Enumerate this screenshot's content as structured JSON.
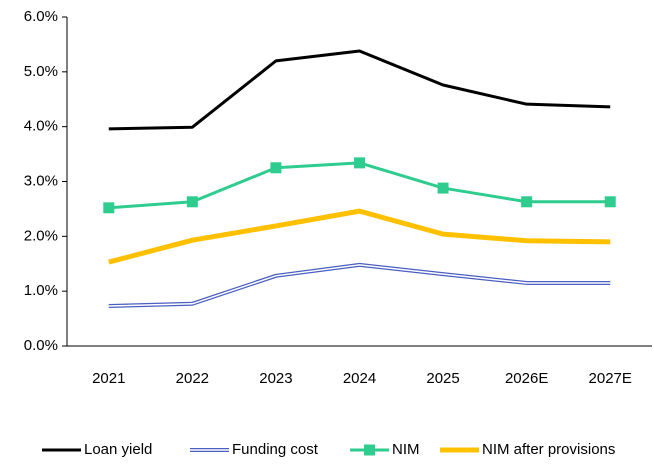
{
  "chart_data": {
    "type": "line",
    "categories": [
      "2021",
      "2022",
      "2023",
      "2024",
      "2025",
      "2026E",
      "2027E"
    ],
    "series": [
      {
        "name": "Loan yield",
        "color": "#000000",
        "values": [
          3.96,
          3.99,
          5.2,
          5.38,
          4.76,
          4.41,
          4.36
        ]
      },
      {
        "name": "Funding cost",
        "color": "#4a5fc1",
        "values": [
          0.73,
          0.77,
          1.28,
          1.48,
          1.31,
          1.15,
          1.15
        ]
      },
      {
        "name": "NIM",
        "color": "#2ecc8f",
        "values": [
          2.52,
          2.63,
          3.25,
          3.34,
          2.88,
          2.63,
          2.63
        ]
      },
      {
        "name": "NIM after provisions",
        "color": "#ffc000",
        "values": [
          1.53,
          1.93,
          2.19,
          2.46,
          2.04,
          1.92,
          1.9
        ]
      }
    ],
    "ylim": [
      0,
      6
    ],
    "yticks": [
      {
        "value": 0,
        "label": "0.0%"
      },
      {
        "value": 1,
        "label": "1.0%"
      },
      {
        "value": 2,
        "label": "2.0%"
      },
      {
        "value": 3,
        "label": "3.0%"
      },
      {
        "value": 4,
        "label": "4.0%"
      },
      {
        "value": 5,
        "label": "5.0%"
      },
      {
        "value": 6,
        "label": "6.0%"
      }
    ],
    "grid": false,
    "legend": "bottom"
  }
}
